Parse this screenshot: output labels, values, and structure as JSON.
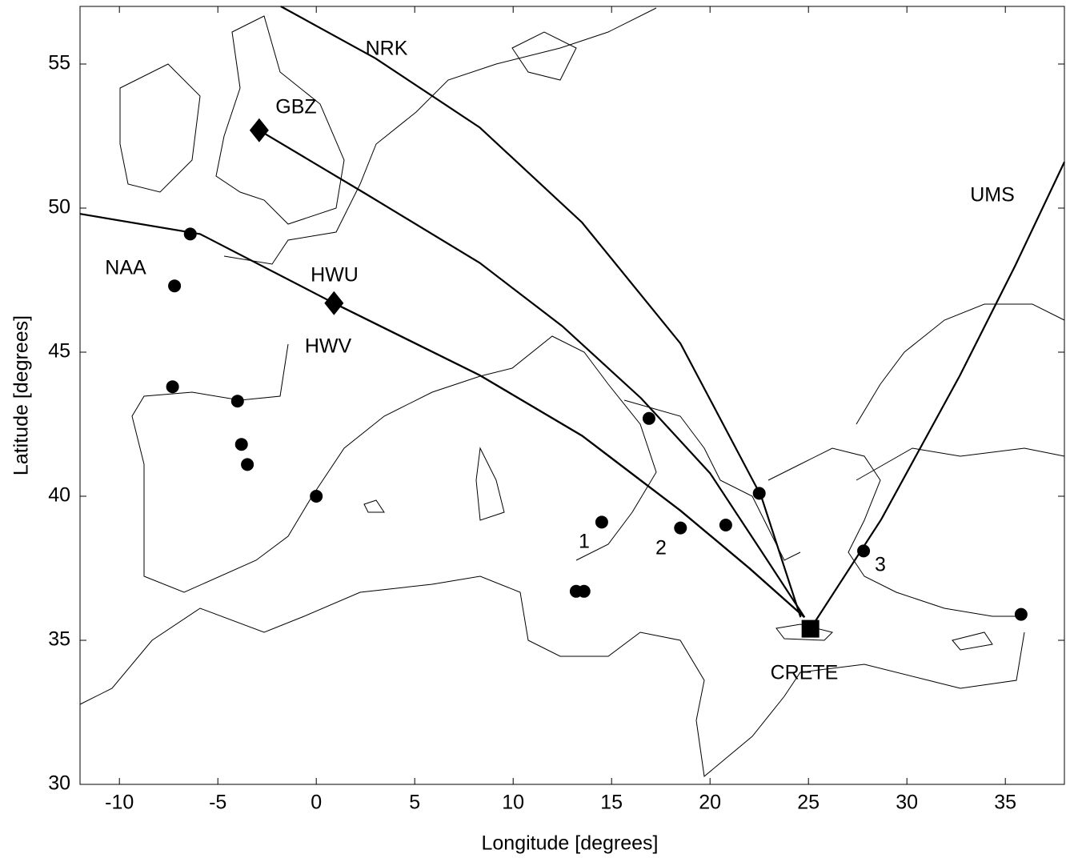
{
  "chart_data": {
    "type": "map",
    "xlabel": "Longitude [degrees]",
    "ylabel": "Latitude [degrees]",
    "xlim": [
      -12,
      38
    ],
    "ylim": [
      30,
      57
    ],
    "xticks": [
      -10,
      -5,
      0,
      5,
      10,
      15,
      20,
      25,
      30,
      35
    ],
    "yticks": [
      30,
      35,
      40,
      45,
      50,
      55
    ],
    "sites": {
      "lon": [
        -6.4,
        -7.2,
        -7.3,
        -4.0,
        -3.8,
        -3.5,
        0.0,
        14.5,
        16.9,
        18.5,
        20.8,
        22.5,
        13.2,
        13.6,
        27.8,
        35.8
      ],
      "lat": [
        49.1,
        47.3,
        43.8,
        43.3,
        41.8,
        41.1,
        40.0,
        39.1,
        42.7,
        38.9,
        39.0,
        40.1,
        36.7,
        36.7,
        38.1,
        35.9
      ]
    },
    "transmitters": [
      {
        "name": "GBZ",
        "lon": -2.9,
        "lat": 52.7
      },
      {
        "name": "HWU",
        "lon": 0.9,
        "lat": 46.7
      }
    ],
    "receiver": {
      "name": "CRETE",
      "lon": 25.1,
      "lat": 35.4
    },
    "paths": [
      {
        "name": "NRK",
        "lon": [
          -1.8,
          3.0,
          8.3,
          13.5,
          18.5,
          22.6,
          24.6
        ],
        "lat": [
          57.0,
          55.2,
          52.8,
          49.5,
          45.3,
          40.0,
          35.8
        ]
      },
      {
        "lon": [
          -2.9,
          2.5,
          8.3,
          12.5,
          16.5,
          20.0,
          22.6,
          24.8
        ],
        "lat": [
          52.7,
          50.5,
          48.1,
          45.9,
          43.4,
          40.8,
          38.1,
          35.8
        ]
      },
      {
        "name": "NAA",
        "lon": [
          -12.0,
          -5.9,
          0.9,
          8.3,
          13.5,
          18.5,
          22.0,
          24.8
        ],
        "lat": [
          49.8,
          49.1,
          46.7,
          44.2,
          42.1,
          39.5,
          37.5,
          35.8
        ]
      },
      {
        "name": "UMS",
        "lon": [
          25.1,
          28.7,
          32.7,
          35.5,
          38.0
        ],
        "lat": [
          35.4,
          39.2,
          44.2,
          48.0,
          51.6
        ]
      }
    ],
    "annotations": [
      "HWV",
      "1",
      "2",
      "3"
    ]
  }
}
